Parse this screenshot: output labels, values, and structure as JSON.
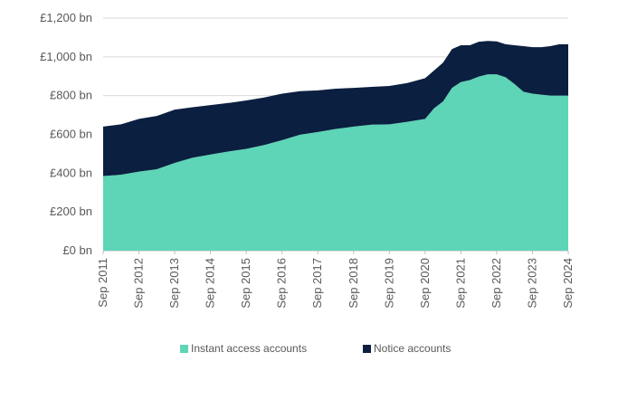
{
  "chart_data": {
    "type": "area",
    "stacked": true,
    "title": "",
    "xlabel": "",
    "ylabel": "",
    "unit": "£ bn",
    "ylim": [
      0,
      1200
    ],
    "y_ticks": [
      {
        "value": 0,
        "label": "£0 bn"
      },
      {
        "value": 200,
        "label": "£200 bn"
      },
      {
        "value": 400,
        "label": "£400 bn"
      },
      {
        "value": 600,
        "label": "£600 bn"
      },
      {
        "value": 800,
        "label": "£800 bn"
      },
      {
        "value": 1000,
        "label": "£1,000 bn"
      },
      {
        "value": 1200,
        "label": "£1,200 bn"
      }
    ],
    "x_ticks": [
      "Sep 2011",
      "Sep 2012",
      "Sep 2013",
      "Sep 2014",
      "Sep 2015",
      "Sep 2016",
      "Sep 2017",
      "Sep 2018",
      "Sep 2019",
      "Sep 2020",
      "Sep 2021",
      "Sep 2022",
      "Sep 2023",
      "Sep 2024"
    ],
    "x": [
      "Sep 2011",
      "Mar 2012",
      "Sep 2012",
      "Mar 2013",
      "Sep 2013",
      "Mar 2014",
      "Sep 2014",
      "Mar 2015",
      "Sep 2015",
      "Mar 2016",
      "Sep 2016",
      "Mar 2017",
      "Sep 2017",
      "Mar 2018",
      "Sep 2018",
      "Mar 2019",
      "Sep 2019",
      "Mar 2020",
      "Sep 2020",
      "Dec 2020",
      "Mar 2021",
      "Jun 2021",
      "Sep 2021",
      "Dec 2021",
      "Mar 2022",
      "Jun 2022",
      "Sep 2022",
      "Dec 2022",
      "Mar 2023",
      "Jun 2023",
      "Sep 2023",
      "Dec 2023",
      "Mar 2024",
      "Jun 2024",
      "Sep 2024"
    ],
    "series": [
      {
        "name": "Instant access accounts",
        "color": "#5dd5b6",
        "values": [
          385,
          392,
          408,
          420,
          453,
          480,
          496,
          512,
          525,
          545,
          570,
          598,
          612,
          628,
          640,
          650,
          652,
          665,
          680,
          735,
          770,
          840,
          870,
          880,
          898,
          910,
          910,
          895,
          860,
          820,
          810,
          805,
          800,
          800,
          800
        ]
      },
      {
        "name": "Notice accounts",
        "color": "#0b1f40",
        "values": [
          255,
          260,
          272,
          275,
          275,
          260,
          255,
          250,
          250,
          245,
          240,
          225,
          215,
          208,
          200,
          195,
          198,
          200,
          210,
          195,
          200,
          200,
          190,
          180,
          180,
          172,
          170,
          170,
          200,
          235,
          240,
          245,
          255,
          265,
          265
        ]
      }
    ],
    "grid": "horizontal",
    "legend_position": "bottom-center"
  }
}
